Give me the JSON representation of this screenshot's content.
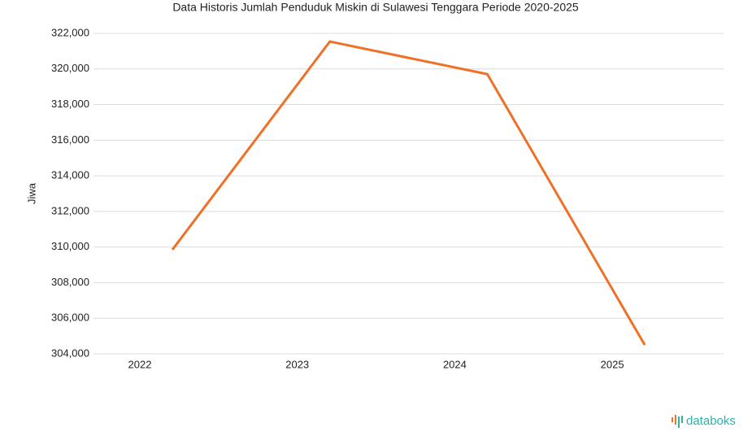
{
  "chart_data": {
    "type": "line",
    "title": "Data Historis Jumlah Penduduk Miskin di Sulawesi Tenggara Periode 2020-2025",
    "y_label": "Jiwa",
    "categories": [
      "2022",
      "2023",
      "2024",
      "2025"
    ],
    "series": [
      {
        "name": "Jiwa",
        "color": "#ef7127",
        "values": [
          309850,
          321540,
          319710,
          304500
        ]
      }
    ],
    "ylim": [
      304000,
      322000
    ],
    "yticks": [
      {
        "value": 304000,
        "label": "304,000"
      },
      {
        "value": 306000,
        "label": "306,000"
      },
      {
        "value": 308000,
        "label": "308,000"
      },
      {
        "value": 310000,
        "label": "310,000"
      },
      {
        "value": 312000,
        "label": "312,000"
      },
      {
        "value": 314000,
        "label": "314,000"
      },
      {
        "value": 316000,
        "label": "316,000"
      },
      {
        "value": 318000,
        "label": "318,000"
      },
      {
        "value": 320000,
        "label": "320,000"
      },
      {
        "value": 322000,
        "label": "322,000"
      }
    ],
    "grid": true,
    "watermark": "databoks"
  }
}
